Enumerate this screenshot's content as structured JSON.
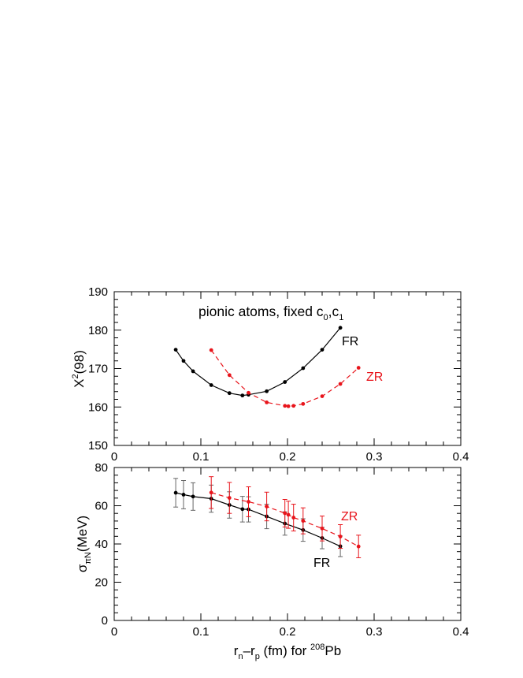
{
  "colors": {
    "fr": "#000000",
    "zr": "#e8141b"
  },
  "chart_data": [
    {
      "type": "line",
      "title": "",
      "annotation": "pionic atoms, fixed c",
      "annotation_sub0": "0",
      "annotation_mid": ",c",
      "annotation_sub1": "1",
      "ylabel_main": "X",
      "ylabel_sup": "2",
      "ylabel_tail": "(98)",
      "xlabel": "",
      "xlim": [
        0,
        0.4
      ],
      "ylim": [
        150,
        190
      ],
      "xticks": [
        0,
        0.1,
        0.2,
        0.3,
        0.4
      ],
      "xtick_labels": [
        "0",
        "0.1",
        "0.2",
        "0.3",
        "0.4"
      ],
      "yticks": [
        150,
        160,
        170,
        180,
        190
      ],
      "ytick_labels": [
        "150",
        "160",
        "170",
        "180",
        "190"
      ],
      "series": [
        {
          "name": "FR",
          "style": "solid",
          "x": [
            0.071,
            0.08,
            0.091,
            0.112,
            0.133,
            0.148,
            0.155,
            0.176,
            0.197,
            0.218,
            0.24,
            0.261
          ],
          "y": [
            174.9,
            172.0,
            169.3,
            165.7,
            163.6,
            163.0,
            163.2,
            164.1,
            166.5,
            170.1,
            174.9,
            180.6
          ]
        },
        {
          "name": "ZR",
          "style": "dashed",
          "x": [
            0.112,
            0.133,
            0.155,
            0.176,
            0.197,
            0.201,
            0.207,
            0.218,
            0.24,
            0.261,
            0.282
          ],
          "y": [
            174.8,
            168.3,
            163.7,
            161.2,
            160.3,
            160.2,
            160.3,
            160.8,
            162.8,
            166.0,
            170.2
          ]
        }
      ]
    },
    {
      "type": "line",
      "title": "",
      "ylabel_main": "σ",
      "ylabel_sub": "πN",
      "ylabel_tail": "(MeV)",
      "xlabel_main": "r",
      "xlabel_sub1": "n",
      "xlabel_mid": "–r",
      "xlabel_sub2": "p",
      "xlabel_tail1": " (fm) for ",
      "xlabel_sup": "208",
      "xlabel_tail2": "Pb",
      "xlim": [
        0,
        0.4
      ],
      "ylim": [
        0,
        80
      ],
      "xticks": [
        0,
        0.1,
        0.2,
        0.3,
        0.4
      ],
      "xtick_labels": [
        "0",
        "0.1",
        "0.2",
        "0.3",
        "0.4"
      ],
      "yticks": [
        0,
        20,
        40,
        60,
        80
      ],
      "ytick_labels": [
        "0",
        "20",
        "40",
        "60",
        "80"
      ],
      "series": [
        {
          "name": "FR",
          "style": "solid",
          "x": [
            0.071,
            0.08,
            0.091,
            0.112,
            0.133,
            0.148,
            0.155,
            0.176,
            0.197,
            0.218,
            0.24,
            0.261
          ],
          "y": [
            66.8,
            65.8,
            64.8,
            63.7,
            60.4,
            58.2,
            58.1,
            54.4,
            50.7,
            47.3,
            43.1,
            38.8
          ],
          "err": [
            7.5,
            7.4,
            7.2,
            7.1,
            6.9,
            6.7,
            6.6,
            6.4,
            6.1,
            5.9,
            5.6,
            5.4
          ]
        },
        {
          "name": "ZR",
          "style": "dashed",
          "x": [
            0.112,
            0.133,
            0.155,
            0.176,
            0.197,
            0.201,
            0.207,
            0.218,
            0.24,
            0.261,
            0.282
          ],
          "y": [
            66.9,
            64.1,
            62.1,
            59.6,
            56.1,
            55.3,
            53.8,
            52.1,
            48.1,
            43.9,
            38.7
          ],
          "err": [
            8.3,
            8.1,
            7.8,
            7.5,
            7.2,
            7.1,
            7.0,
            6.8,
            6.5,
            6.2,
            5.9
          ]
        }
      ]
    }
  ]
}
